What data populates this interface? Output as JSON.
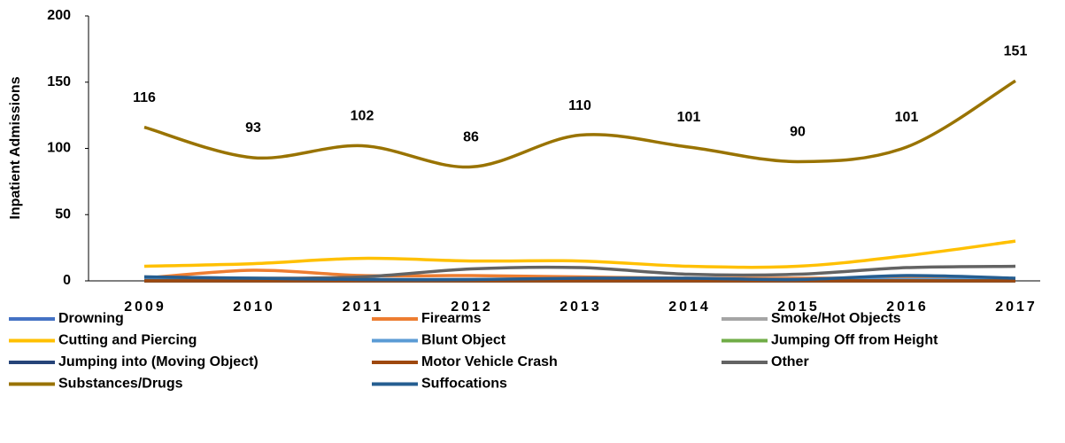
{
  "chart_data": {
    "type": "line",
    "y_label": "Inpatient Admissions",
    "categories": [
      "2009",
      "2010",
      "2011",
      "2012",
      "2013",
      "2014",
      "2015",
      "2016",
      "2017"
    ],
    "ylim": [
      0,
      200
    ],
    "yticks": [
      0,
      50,
      100,
      150,
      200
    ],
    "smooth": true,
    "series": [
      {
        "name": "Drowning",
        "color": "#4472c4",
        "values": [
          0,
          0,
          0,
          0,
          0,
          0,
          0,
          0,
          0
        ]
      },
      {
        "name": "Firearms",
        "color": "#ed7d31",
        "values": [
          2,
          8,
          4,
          4,
          3,
          2,
          2,
          2,
          1
        ]
      },
      {
        "name": "Smoke/Hot Objects",
        "color": "#a5a5a5",
        "values": [
          1,
          1,
          1,
          1,
          1,
          1,
          1,
          1,
          1
        ]
      },
      {
        "name": "Cutting and Piercing",
        "color": "#ffc000",
        "values": [
          11,
          13,
          17,
          15,
          15,
          11,
          11,
          19,
          30
        ]
      },
      {
        "name": "Blunt Object",
        "color": "#5b9bd5",
        "values": [
          1,
          1,
          1,
          1,
          1,
          1,
          1,
          1,
          1
        ]
      },
      {
        "name": "Jumping Off from Height",
        "color": "#70ad47",
        "values": [
          0,
          0,
          0,
          0,
          0,
          0,
          0,
          0,
          0
        ]
      },
      {
        "name": "Jumping into (Moving Object)",
        "color": "#264478",
        "values": [
          0,
          0,
          0,
          0,
          0,
          0,
          0,
          0,
          0
        ]
      },
      {
        "name": "Motor Vehicle Crash",
        "color": "#9e480e",
        "values": [
          0,
          0,
          0,
          0,
          0,
          0,
          0,
          0,
          0
        ]
      },
      {
        "name": "Other",
        "color": "#636363",
        "values": [
          3,
          2,
          3,
          9,
          10,
          5,
          5,
          10,
          11
        ]
      },
      {
        "name": "Substances/Drugs",
        "color": "#997300",
        "values": [
          116,
          93,
          102,
          86,
          110,
          101,
          90,
          101,
          151
        ],
        "data_labels": true
      },
      {
        "name": "Suffocations",
        "color": "#255e91",
        "values": [
          3,
          2,
          1,
          1,
          2,
          2,
          1,
          4,
          2
        ]
      }
    ]
  }
}
